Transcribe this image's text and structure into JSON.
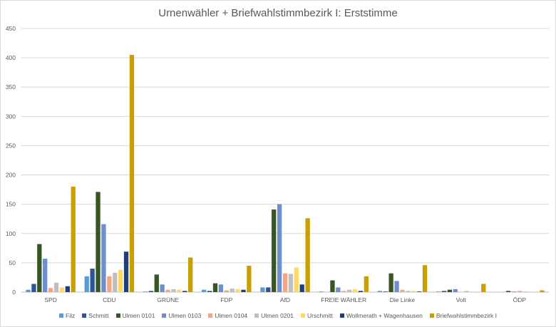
{
  "chart_data": {
    "type": "bar",
    "title": "Urnenwähler + Briefwahlstimmbezirk I: Erststimme",
    "xlabel": "",
    "ylabel": "",
    "ylim": [
      0,
      450
    ],
    "yticks": [
      0,
      50,
      100,
      150,
      200,
      250,
      300,
      350,
      400,
      450
    ],
    "grid": true,
    "legend_position": "bottom",
    "categories": [
      "SPD",
      "CDU",
      "GRÜNE",
      "FDP",
      "AfD",
      "FREIE WÄHLER",
      "Die Linke",
      "Volt",
      "ÖDP"
    ],
    "series": [
      {
        "name": "Filz",
        "color": "#5b9bd5",
        "values": [
          4,
          27,
          1,
          4,
          8,
          1,
          2,
          1,
          0
        ]
      },
      {
        "name": "Schmitt",
        "color": "#2e5597",
        "values": [
          14,
          40,
          2,
          2,
          8,
          0,
          1,
          2,
          0
        ]
      },
      {
        "name": "Ulmen 0101",
        "color": "#375623",
        "values": [
          82,
          171,
          30,
          15,
          141,
          20,
          32,
          4,
          2
        ]
      },
      {
        "name": "Ulmen 0103",
        "color": "#6d8fcf",
        "values": [
          57,
          116,
          13,
          13,
          150,
          8,
          19,
          5,
          1
        ]
      },
      {
        "name": "Ulmen 0104",
        "color": "#f4a582",
        "values": [
          7,
          27,
          4,
          3,
          32,
          2,
          4,
          0,
          2
        ]
      },
      {
        "name": "Ulmen 0201",
        "color": "#bfbfbf",
        "values": [
          16,
          33,
          5,
          6,
          31,
          4,
          2,
          2,
          1
        ]
      },
      {
        "name": "Urschmitt",
        "color": "#ffd966",
        "values": [
          8,
          38,
          4,
          5,
          42,
          5,
          2,
          1,
          1
        ]
      },
      {
        "name": "Wollmerath + Wagenhausen",
        "color": "#1f3f7a",
        "values": [
          10,
          69,
          2,
          4,
          13,
          2,
          1,
          0,
          0
        ]
      },
      {
        "name": "Briefwahlstimmbezirk I",
        "color": "#c9a000",
        "values": [
          180,
          405,
          59,
          45,
          126,
          27,
          46,
          14,
          3
        ]
      }
    ]
  }
}
